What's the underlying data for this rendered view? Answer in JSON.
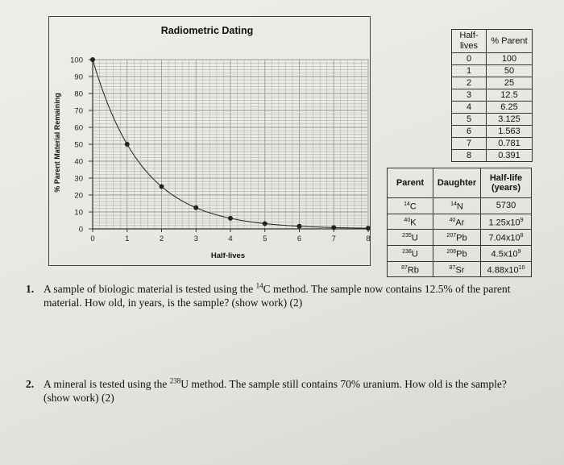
{
  "chart_data": {
    "type": "line",
    "title": "Radiometric Dating",
    "xlabel": "Half-lives",
    "ylabel": "% Parent Material Remaining",
    "x": [
      0,
      1,
      2,
      3,
      4,
      5,
      6,
      7,
      8
    ],
    "y": [
      100,
      50,
      25,
      12.5,
      6.25,
      3.125,
      1.563,
      0.781,
      0.391
    ],
    "xlim": [
      0,
      8
    ],
    "ylim": [
      0,
      100
    ],
    "xticks": [
      "0",
      "1",
      "2",
      "3",
      "4",
      "5",
      "6",
      "7",
      "8"
    ],
    "yticks": [
      "0",
      "10",
      "20",
      "30",
      "40",
      "50",
      "60",
      "70",
      "80",
      "90",
      "100"
    ],
    "grid": true,
    "color": "#222222"
  },
  "halflife_table": {
    "headers": [
      "Half-lives",
      "% Parent"
    ],
    "rows": [
      [
        "0",
        "100"
      ],
      [
        "1",
        "50"
      ],
      [
        "2",
        "25"
      ],
      [
        "3",
        "12.5"
      ],
      [
        "4",
        "6.25"
      ],
      [
        "5",
        "3.125"
      ],
      [
        "6",
        "1.563"
      ],
      [
        "7",
        "0.781"
      ],
      [
        "8",
        "0.391"
      ]
    ]
  },
  "isotope_table": {
    "headers": [
      "Parent",
      "Daughter",
      "Half-life (years)"
    ],
    "rows": [
      {
        "parent_mass": "14",
        "parent_sym": "C",
        "daughter_mass": "14",
        "daughter_sym": "N",
        "half_life": "5730"
      },
      {
        "parent_mass": "40",
        "parent_sym": "K",
        "daughter_mass": "40",
        "daughter_sym": "Ar",
        "half_life_base": "1.25x10",
        "half_life_exp": "9"
      },
      {
        "parent_mass": "235",
        "parent_sym": "U",
        "daughter_mass": "207",
        "daughter_sym": "Pb",
        "half_life_base": "7.04x10",
        "half_life_exp": "8"
      },
      {
        "parent_mass": "238",
        "parent_sym": "U",
        "daughter_mass": "206",
        "daughter_sym": "Pb",
        "half_life_base": "4.5x10",
        "half_life_exp": "9"
      },
      {
        "parent_mass": "87",
        "parent_sym": "Rb",
        "daughter_mass": "87",
        "daughter_sym": "Sr",
        "half_life_base": "4.88x10",
        "half_life_exp": "10"
      }
    ]
  },
  "questions": [
    {
      "number": "1.",
      "pre": "A sample of biologic material is tested using the ",
      "iso_mass": "14",
      "iso_sym": "C",
      "post": " method.  The sample now contains 12.5% of the parent",
      "line2": "material.  How old, in years, is the sample? (show work) (2)"
    },
    {
      "number": "2.",
      "pre": "A mineral is tested using the ",
      "iso_mass": "238",
      "iso_sym": "U",
      "post": " method.  The sample still contains 70% uranium.  How old is the sample?",
      "line2": "(show work) (2)"
    }
  ]
}
